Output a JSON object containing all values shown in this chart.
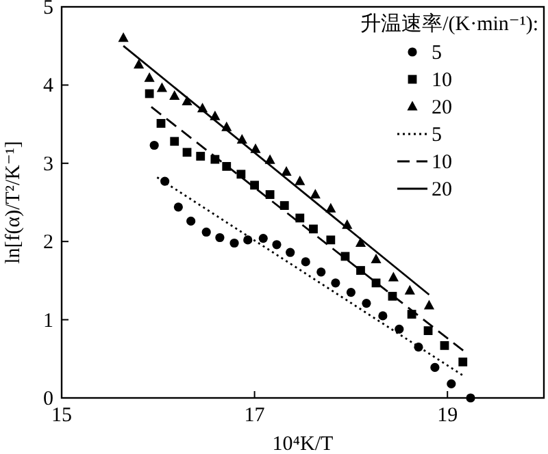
{
  "chart_data": {
    "type": "scatter",
    "xlabel": "10⁴K/T",
    "ylabel": "ln[f(α)/T²/K⁻¹]",
    "legend_title": "升温速率/(K·min⁻¹):",
    "legend": "top right",
    "grid": false,
    "xlim": [
      15,
      20
    ],
    "ylim": [
      0,
      5
    ],
    "xticks": [
      15,
      17,
      19
    ],
    "yticks": [
      0,
      1,
      2,
      3,
      4,
      5
    ],
    "series": [
      {
        "name": "5",
        "marker": "circle",
        "color": "#000000",
        "x": [
          15.96,
          16.07,
          16.21,
          16.34,
          16.5,
          16.64,
          16.79,
          16.93,
          17.09,
          17.23,
          17.37,
          17.53,
          17.69,
          17.84,
          18.0,
          18.16,
          18.33,
          18.5,
          18.7,
          18.87,
          19.04,
          19.24
        ],
        "values": [
          3.23,
          2.77,
          2.44,
          2.26,
          2.12,
          2.05,
          1.98,
          2.02,
          2.04,
          1.96,
          1.86,
          1.74,
          1.61,
          1.47,
          1.35,
          1.21,
          1.05,
          0.88,
          0.65,
          0.39,
          0.18,
          0.0
        ]
      },
      {
        "name": "10",
        "marker": "square",
        "color": "#000000",
        "x": [
          15.91,
          16.03,
          16.17,
          16.3,
          16.44,
          16.59,
          16.71,
          16.86,
          17.0,
          17.16,
          17.31,
          17.47,
          17.61,
          17.79,
          17.94,
          18.1,
          18.26,
          18.43,
          18.63,
          18.8,
          18.97,
          19.16
        ],
        "values": [
          3.89,
          3.51,
          3.28,
          3.14,
          3.09,
          3.05,
          2.96,
          2.86,
          2.72,
          2.6,
          2.46,
          2.3,
          2.16,
          2.02,
          1.81,
          1.63,
          1.47,
          1.3,
          1.07,
          0.86,
          0.67,
          0.46
        ]
      },
      {
        "name": "20",
        "marker": "triangle",
        "color": "#000000",
        "x": [
          15.64,
          15.8,
          15.91,
          16.04,
          16.17,
          16.3,
          16.46,
          16.59,
          16.71,
          16.87,
          17.01,
          17.16,
          17.33,
          17.47,
          17.63,
          17.79,
          17.96,
          18.1,
          18.26,
          18.44,
          18.61,
          18.81
        ],
        "values": [
          4.6,
          4.26,
          4.09,
          3.96,
          3.86,
          3.79,
          3.7,
          3.6,
          3.46,
          3.3,
          3.18,
          3.04,
          2.89,
          2.77,
          2.6,
          2.42,
          2.21,
          1.98,
          1.77,
          1.54,
          1.37,
          1.18
        ]
      },
      {
        "name": "5",
        "type": "line",
        "line_style": "dotted",
        "color": "#000000",
        "x": [
          15.99,
          19.17
        ],
        "values": [
          2.82,
          0.28
        ]
      },
      {
        "name": "10",
        "type": "line",
        "line_style": "dashed",
        "color": "#000000",
        "x": [
          15.93,
          19.19
        ],
        "values": [
          3.72,
          0.58
        ]
      },
      {
        "name": "20",
        "type": "line",
        "line_style": "solid",
        "color": "#000000",
        "x": [
          15.64,
          18.81
        ],
        "values": [
          4.5,
          1.32
        ]
      }
    ]
  }
}
